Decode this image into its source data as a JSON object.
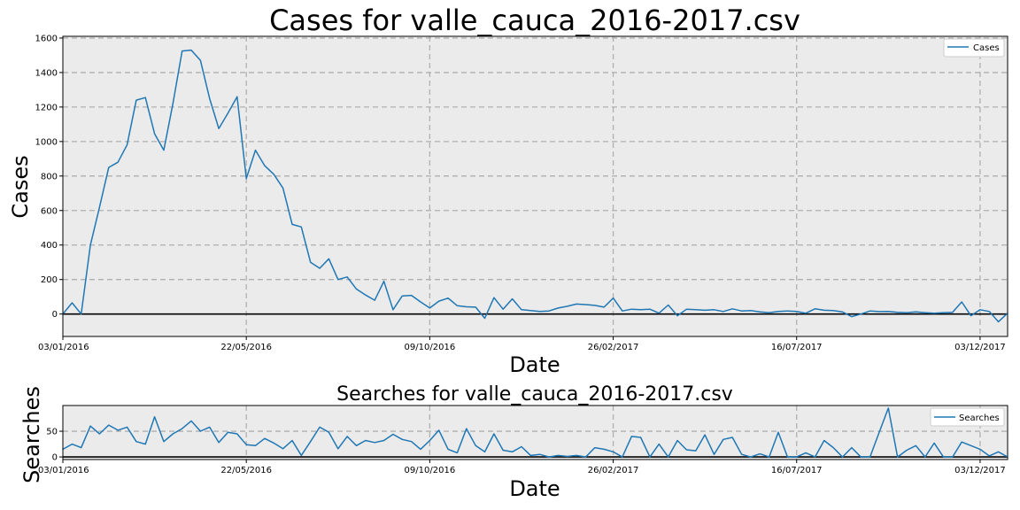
{
  "colors": {
    "line": "#1f77b4",
    "axes_bg": "#ebebeb",
    "grid": "#b0b0b0",
    "zero_line": "#000000"
  },
  "chart_data": [
    {
      "type": "line",
      "title": "Cases for valle_cauca_2016-2017.csv",
      "xlabel": "Date",
      "ylabel": "Cases",
      "x_tick_labels": [
        "03/01/2016",
        "22/05/2016",
        "09/10/2016",
        "26/02/2017",
        "16/07/2017",
        "03/12/2017"
      ],
      "y_ticks": [
        0,
        200,
        400,
        600,
        800,
        1000,
        1200,
        1400,
        1600
      ],
      "x_range_weeks": [
        0,
        103
      ],
      "ylim": [
        -130,
        1610
      ],
      "grid": true,
      "legend": "top-right",
      "series": [
        {
          "name": "Cases",
          "values": [
            0,
            65,
            0,
            400,
            620,
            850,
            880,
            980,
            1240,
            1255,
            1045,
            950,
            1220,
            1525,
            1530,
            1470,
            1250,
            1075,
            1165,
            1260,
            785,
            950,
            860,
            810,
            730,
            520,
            505,
            300,
            265,
            320,
            200,
            215,
            145,
            110,
            80,
            190,
            25,
            105,
            108,
            70,
            35,
            75,
            92,
            48,
            42,
            40,
            -25,
            95,
            28,
            88,
            25,
            20,
            15,
            18,
            35,
            45,
            58,
            55,
            50,
            40,
            92,
            18,
            28,
            25,
            28,
            5,
            52,
            -10,
            28,
            25,
            22,
            25,
            15,
            30,
            18,
            20,
            12,
            8,
            15,
            18,
            15,
            5,
            30,
            22,
            20,
            12,
            -15,
            0,
            18,
            14,
            15,
            10,
            8,
            12,
            8,
            5,
            8,
            10,
            70,
            -10,
            25,
            15,
            -45,
            5
          ]
        }
      ]
    },
    {
      "type": "line",
      "title": "Searches for valle_cauca_2016-2017.csv",
      "xlabel": "Date",
      "ylabel": "Searches",
      "x_tick_labels": [
        "03/01/2016",
        "22/05/2016",
        "09/10/2016",
        "26/02/2017",
        "16/07/2017",
        "03/12/2017"
      ],
      "y_ticks": [
        0,
        50
      ],
      "x_range_weeks": [
        0,
        103
      ],
      "ylim": [
        -5,
        100
      ],
      "grid": true,
      "legend": "top-right",
      "series": [
        {
          "name": "Searches",
          "values": [
            15,
            25,
            18,
            60,
            45,
            62,
            52,
            58,
            30,
            25,
            78,
            30,
            45,
            55,
            70,
            50,
            58,
            28,
            48,
            45,
            24,
            22,
            36,
            27,
            16,
            32,
            3,
            30,
            58,
            48,
            16,
            40,
            22,
            32,
            28,
            32,
            44,
            34,
            30,
            15,
            32,
            52,
            15,
            8,
            55,
            22,
            10,
            45,
            13,
            10,
            20,
            3,
            5,
            0,
            3,
            1,
            3,
            0,
            18,
            15,
            10,
            0,
            40,
            38,
            0,
            25,
            0,
            32,
            14,
            12,
            43,
            5,
            34,
            38,
            5,
            0,
            6,
            0,
            48,
            0,
            0,
            8,
            0,
            32,
            18,
            0,
            18,
            0,
            0,
            48,
            95,
            0,
            13,
            22,
            0,
            27,
            0,
            0,
            29,
            22,
            15,
            2,
            10,
            0
          ]
        }
      ]
    }
  ]
}
